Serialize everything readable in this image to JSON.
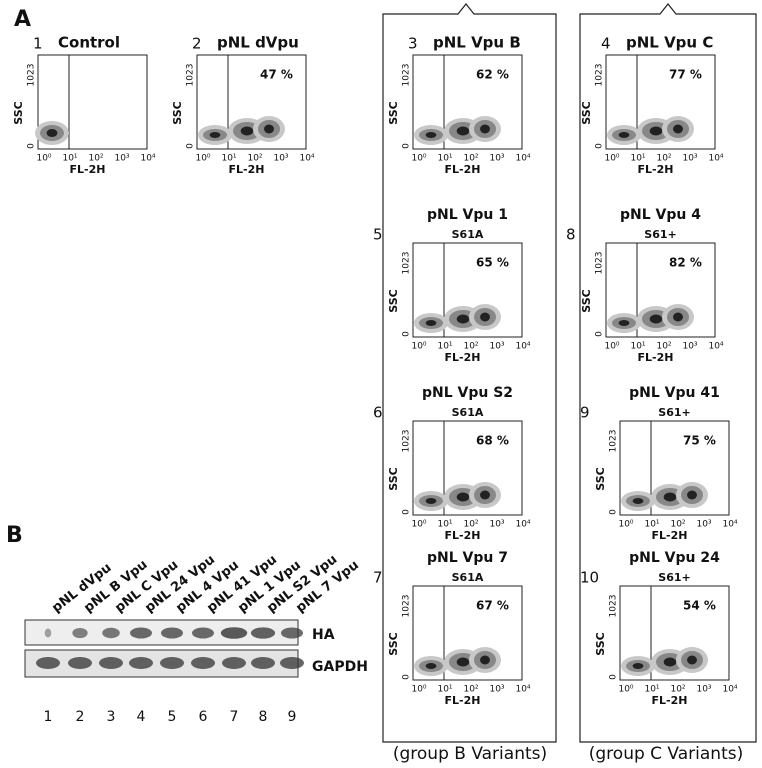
{
  "panel_a": {
    "label": "A",
    "axes": {
      "y_label": "SSC",
      "y_max": "1023",
      "y_min": "0",
      "x_label": "FL-2H",
      "x_ticks": [
        "10⁰",
        "10¹",
        "10²",
        "10³",
        "10⁴"
      ]
    },
    "plots": [
      {
        "number": "1",
        "title": "Control"
      },
      {
        "number": "2",
        "title": "pNL dVpu",
        "percent": "47 %"
      },
      {
        "number": "3",
        "title": "pNL Vpu B",
        "percent": "62 %"
      },
      {
        "number": "4",
        "title": "pNL Vpu C",
        "percent": "77 %"
      },
      {
        "number": "5",
        "title": "pNL Vpu 1",
        "subtitle": "S61A",
        "percent": "65 %"
      },
      {
        "number": "6",
        "title": "pNL Vpu S2",
        "subtitle": "S61A",
        "percent": "68 %"
      },
      {
        "number": "7",
        "title": "pNL Vpu 7",
        "subtitle": "S61A",
        "percent": "67 %"
      },
      {
        "number": "8",
        "title": "pNL Vpu 4",
        "subtitle": "S61+",
        "percent": "82 %"
      },
      {
        "number": "9",
        "title": "pNL Vpu 41",
        "subtitle": "S61+",
        "percent": "75 %"
      },
      {
        "number": "10",
        "title": "pNL Vpu 24",
        "subtitle": "S61+",
        "percent": "54 %"
      }
    ],
    "groups": [
      "(group B Variants)",
      "(group C Variants)"
    ]
  },
  "panel_b": {
    "label": "B",
    "lanes": [
      "pNL dVpu",
      "pNL B Vpu",
      "pNL C Vpu",
      "pNL 24 Vpu",
      "pNL 4 Vpu",
      "pNL 41 Vpu",
      "pNL 1 Vpu",
      "pNL S2 Vpu",
      "pNL 7 Vpu"
    ],
    "lane_numbers": [
      "1",
      "2",
      "3",
      "4",
      "5",
      "6",
      "7",
      "8",
      "9"
    ],
    "blots": [
      "HA",
      "GAPDH"
    ]
  }
}
